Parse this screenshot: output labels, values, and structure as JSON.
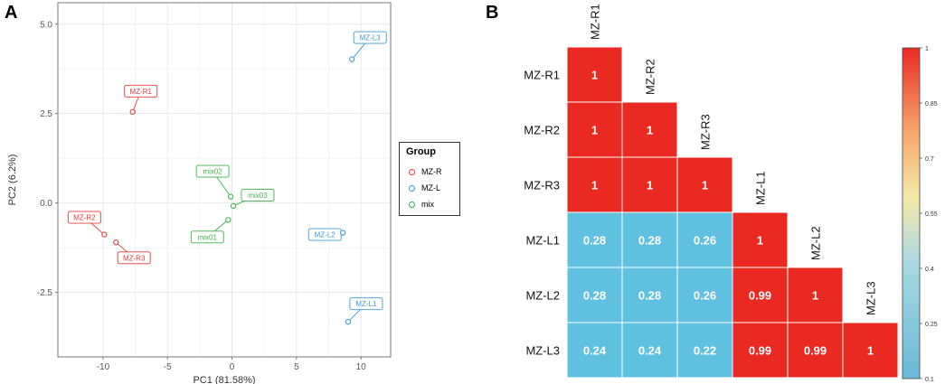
{
  "panels": {
    "a_label": "A",
    "b_label": "B"
  },
  "chart_data": [
    {
      "type": "scatter",
      "title": "",
      "xlabel": "PC1 (81.58%)",
      "ylabel": "PC2 (6.2%)",
      "xlim": [
        -13.5,
        12.3
      ],
      "ylim": [
        -4.3,
        5.6
      ],
      "xticks": [
        -10,
        -5,
        0,
        5,
        10
      ],
      "xtick_labels": [
        "-10",
        "-5",
        "0",
        "5",
        "10"
      ],
      "yticks": [
        -2.5,
        0.0,
        2.5,
        5.0
      ],
      "ytick_labels": [
        "-2.5",
        "0.0",
        "2.5",
        "5.0"
      ],
      "grid": true,
      "legend": {
        "title": "Group",
        "position": "right",
        "entries": [
          "MZ-R",
          "MZ-L",
          "mix"
        ]
      },
      "colors": {
        "MZ-R": "#e8393c",
        "MZ-L": "#3a9bd4",
        "mix": "#3cb34a"
      },
      "points": [
        {
          "label": "MZ-R1",
          "group": "MZ-R",
          "x": -7.7,
          "y": 2.55
        },
        {
          "label": "MZ-R2",
          "group": "MZ-R",
          "x": -9.9,
          "y": -0.88
        },
        {
          "label": "MZ-R3",
          "group": "MZ-R",
          "x": -9.0,
          "y": -1.1
        },
        {
          "label": "MZ-L3",
          "group": "MZ-L",
          "x": 9.3,
          "y": 4.02
        },
        {
          "label": "MZ-L2",
          "group": "MZ-L",
          "x": 8.6,
          "y": -0.83
        },
        {
          "label": "MZ-L1",
          "group": "MZ-L",
          "x": 9.0,
          "y": -3.32
        },
        {
          "label": "mix02",
          "group": "mix",
          "x": -0.1,
          "y": 0.18
        },
        {
          "label": "mix03",
          "group": "mix",
          "x": 0.1,
          "y": -0.08
        },
        {
          "label": "mix01",
          "group": "mix",
          "x": -0.3,
          "y": -0.47
        }
      ]
    },
    {
      "type": "heatmap",
      "title": "",
      "labels": [
        "MZ-R1",
        "MZ-R2",
        "MZ-R3",
        "MZ-L1",
        "MZ-L2",
        "MZ-L3"
      ],
      "rows": [
        [
          "1"
        ],
        [
          "1",
          "1"
        ],
        [
          "1",
          "1",
          "1"
        ],
        [
          "0.28",
          "0.28",
          "0.26",
          "1"
        ],
        [
          "0.28",
          "0.28",
          "0.26",
          "0.99",
          "1"
        ],
        [
          "0.24",
          "0.24",
          "0.22",
          "0.99",
          "0.99",
          "1"
        ]
      ],
      "colorbar": {
        "range": [
          0.1,
          1
        ],
        "tick_labels": [
          "1",
          "0.85",
          "0.7",
          "0.55",
          "0.4",
          "0.25",
          "0.1"
        ],
        "tick_values": [
          1,
          0.85,
          0.7,
          0.55,
          0.4,
          0.25,
          0.1
        ],
        "low_color": "#69b8d6",
        "high_color": "#ea2a22"
      },
      "cell_colors": {
        "high": "#ea2a22",
        "low": "#5fc1df"
      }
    }
  ]
}
